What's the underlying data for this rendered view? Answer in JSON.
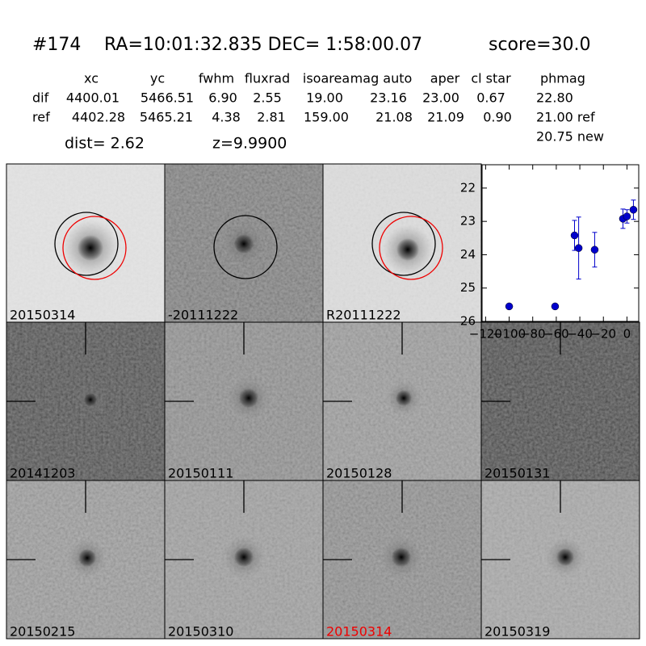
{
  "header": {
    "id": "#174",
    "coords": "RA=10:01:32.835 DEC= 1:58:00.07",
    "score": "score=30.0"
  },
  "table": {
    "columns": [
      "xc",
      "yc",
      "fwhm",
      "fluxrad",
      "isoarea",
      "mag auto",
      "aper",
      "cl star",
      "phmag"
    ],
    "rows": [
      [
        "dif",
        "4400.01",
        "5466.51",
        "6.90",
        "2.55",
        "19.00",
        "23.16",
        "23.00",
        "0.67",
        "22.80"
      ],
      [
        "ref",
        "4402.28",
        "5465.21",
        "4.38",
        "2.81",
        "159.00",
        "21.08",
        "21.09",
        "0.90",
        "21.00 ref"
      ]
    ],
    "extra": "20.75 new"
  },
  "info": {
    "dist": "dist=  2.62",
    "z": "z=9.9900"
  },
  "panels": [
    "20150314",
    "-20111222",
    "R20111222",
    "20141203",
    "20150111",
    "20150128",
    "20150131",
    "20150215",
    "20150310",
    "20150314",
    "20150319"
  ],
  "chart_data": {
    "type": "errorbar",
    "x": [
      -100,
      -61,
      -44.5,
      -41,
      -27.4,
      -3.4,
      0,
      5.5
    ],
    "series": [
      {
        "color": "#0000cc",
        "values": [
          25.55,
          25.55,
          23.42,
          23.8,
          23.85,
          22.92,
          22.85,
          22.65
        ],
        "errors": [
          0.06,
          0.06,
          0.45,
          0.93,
          0.52,
          0.29,
          0.2,
          0.29
        ]
      }
    ],
    "xlim": [
      -123,
      10
    ],
    "ylim": [
      26,
      21.3
    ],
    "xticks": [
      {
        "value": -120,
        "label": "−120"
      },
      {
        "value": -100,
        "label": "−100"
      },
      {
        "value": -80,
        "label": "−80"
      },
      {
        "value": -60,
        "label": "−60"
      },
      {
        "value": -40,
        "label": "−40"
      },
      {
        "value": -20,
        "label": "−20"
      },
      0
    ],
    "yticks": [
      22,
      23,
      24,
      25,
      26
    ]
  }
}
